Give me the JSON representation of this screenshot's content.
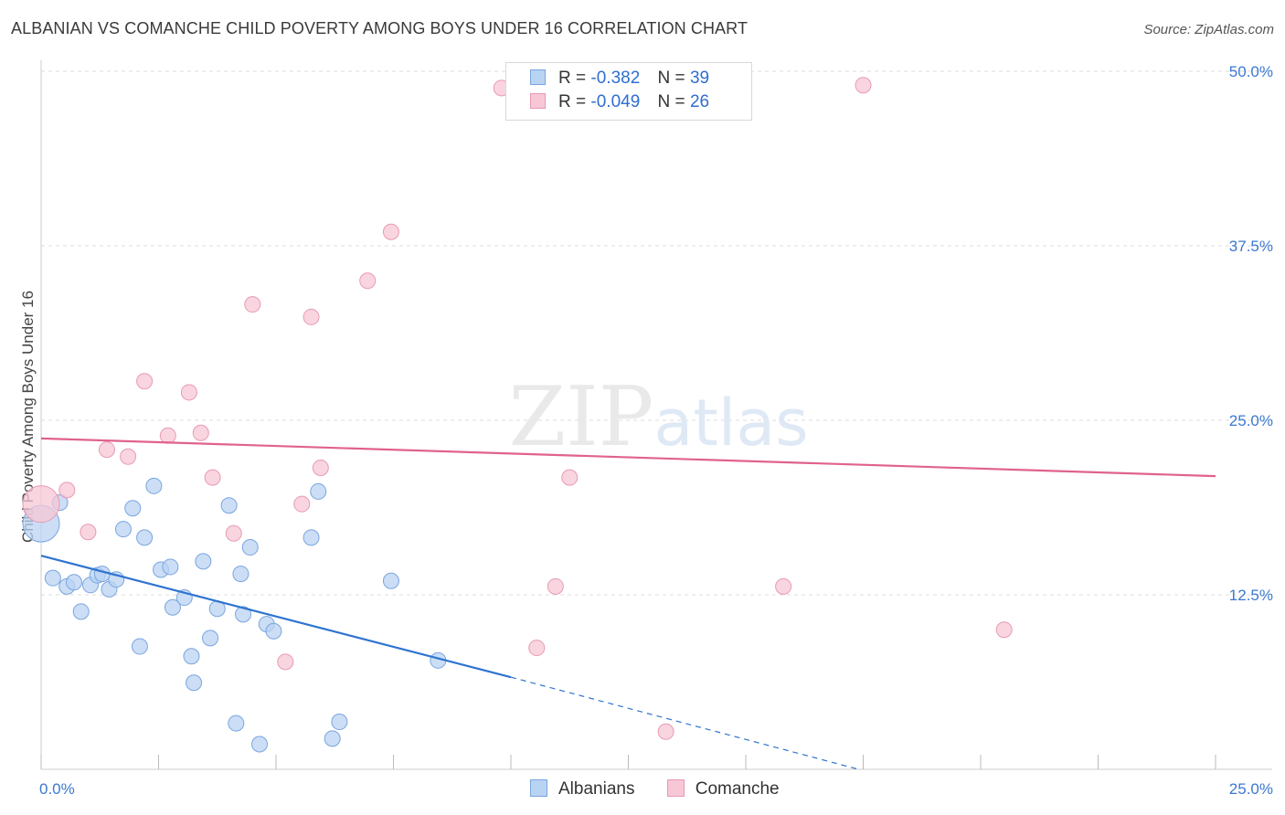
{
  "header": {
    "title": "ALBANIAN VS COMANCHE CHILD POVERTY AMONG BOYS UNDER 16 CORRELATION CHART",
    "source": "Source: ZipAtlas.com"
  },
  "watermark": {
    "zip": "ZIP",
    "atlas": "atlas"
  },
  "legend": {
    "rows": [
      {
        "r_label": "R =",
        "r_value": "-0.382",
        "n_label": "N =",
        "n_value": "39"
      },
      {
        "r_label": "R =",
        "r_value": "-0.049",
        "n_label": "N =",
        "n_value": "26"
      }
    ]
  },
  "bottom_legend": [
    "Albanians",
    "Comanche"
  ],
  "colors": {
    "albanians_fill": "#b9d3f3",
    "albanians_stroke": "#7aa5df",
    "albanians_line": "#2f74d0",
    "comanche_fill": "#f7c7d6",
    "comanche_stroke": "#e89ab3",
    "comanche_line": "#e0628d",
    "tick_label": "#3b78d0",
    "grid": "#dddddd"
  },
  "chart_data": {
    "type": "scatter",
    "title": "ALBANIAN VS COMANCHE CHILD POVERTY AMONG BOYS UNDER 16 CORRELATION CHART",
    "xlabel": "",
    "ylabel": "Child Poverty Among Boys Under 16",
    "xlim": [
      0,
      25
    ],
    "ylim": [
      0,
      50
    ],
    "x_tick_labels": [
      "0.0%",
      "25.0%"
    ],
    "y_ticks": [
      12.5,
      25.0,
      37.5,
      50.0
    ],
    "y_tick_labels": [
      "12.5%",
      "25.0%",
      "37.5%",
      "50.0%"
    ],
    "grid": "horizontal dashed",
    "legend_position": "top-center",
    "series": [
      {
        "name": "Albanians",
        "R": -0.382,
        "N": 39,
        "trend": {
          "x0": 0,
          "y0": 15.3,
          "x1": 10.0,
          "y1": 6.6,
          "dashed_to_x": 17.4,
          "dashed_to_y": 0.0
        },
        "points": [
          {
            "x": 0.0,
            "y": 17.6,
            "big": true
          },
          {
            "x": 0.4,
            "y": 19.1
          },
          {
            "x": 0.25,
            "y": 13.7
          },
          {
            "x": 0.55,
            "y": 13.1
          },
          {
            "x": 0.7,
            "y": 13.4
          },
          {
            "x": 0.85,
            "y": 11.3
          },
          {
            "x": 1.05,
            "y": 13.2
          },
          {
            "x": 1.2,
            "y": 13.9
          },
          {
            "x": 1.3,
            "y": 14.0
          },
          {
            "x": 1.45,
            "y": 12.9
          },
          {
            "x": 1.6,
            "y": 13.6
          },
          {
            "x": 1.75,
            "y": 17.2
          },
          {
            "x": 1.95,
            "y": 18.7
          },
          {
            "x": 2.1,
            "y": 8.8
          },
          {
            "x": 2.2,
            "y": 16.6
          },
          {
            "x": 2.4,
            "y": 20.3
          },
          {
            "x": 2.55,
            "y": 14.3
          },
          {
            "x": 2.75,
            "y": 14.5
          },
          {
            "x": 2.8,
            "y": 11.6
          },
          {
            "x": 3.05,
            "y": 12.3
          },
          {
            "x": 3.2,
            "y": 8.1
          },
          {
            "x": 3.25,
            "y": 6.2
          },
          {
            "x": 3.45,
            "y": 14.9
          },
          {
            "x": 3.6,
            "y": 9.4
          },
          {
            "x": 3.75,
            "y": 11.5
          },
          {
            "x": 4.0,
            "y": 18.9
          },
          {
            "x": 4.15,
            "y": 3.3
          },
          {
            "x": 4.25,
            "y": 14.0
          },
          {
            "x": 4.3,
            "y": 11.1
          },
          {
            "x": 4.45,
            "y": 15.9
          },
          {
            "x": 4.65,
            "y": 1.8
          },
          {
            "x": 4.8,
            "y": 10.4
          },
          {
            "x": 4.95,
            "y": 9.9
          },
          {
            "x": 5.75,
            "y": 16.6
          },
          {
            "x": 5.9,
            "y": 19.9
          },
          {
            "x": 6.2,
            "y": 2.2
          },
          {
            "x": 6.35,
            "y": 3.4
          },
          {
            "x": 7.45,
            "y": 13.5
          },
          {
            "x": 8.45,
            "y": 7.8
          }
        ]
      },
      {
        "name": "Comanche",
        "R": -0.049,
        "N": 26,
        "trend": {
          "x0": 0,
          "y0": 23.7,
          "x1": 25,
          "y1": 21.0
        },
        "points": [
          {
            "x": 0.0,
            "y": 19.0,
            "big": true
          },
          {
            "x": 0.55,
            "y": 20.0
          },
          {
            "x": 1.0,
            "y": 17.0
          },
          {
            "x": 1.4,
            "y": 22.9
          },
          {
            "x": 1.85,
            "y": 22.4
          },
          {
            "x": 2.2,
            "y": 27.8
          },
          {
            "x": 2.7,
            "y": 23.9
          },
          {
            "x": 3.15,
            "y": 27.0
          },
          {
            "x": 3.4,
            "y": 24.1
          },
          {
            "x": 3.65,
            "y": 20.9
          },
          {
            "x": 4.1,
            "y": 16.9
          },
          {
            "x": 4.5,
            "y": 33.3
          },
          {
            "x": 5.2,
            "y": 7.7
          },
          {
            "x": 5.55,
            "y": 19.0
          },
          {
            "x": 5.75,
            "y": 32.4
          },
          {
            "x": 5.95,
            "y": 21.6
          },
          {
            "x": 6.95,
            "y": 35.0
          },
          {
            "x": 7.45,
            "y": 38.5
          },
          {
            "x": 9.8,
            "y": 48.8
          },
          {
            "x": 10.55,
            "y": 8.7
          },
          {
            "x": 10.95,
            "y": 13.1
          },
          {
            "x": 11.25,
            "y": 20.9
          },
          {
            "x": 13.3,
            "y": 2.7
          },
          {
            "x": 15.8,
            "y": 13.1
          },
          {
            "x": 17.5,
            "y": 49.0
          },
          {
            "x": 20.5,
            "y": 10.0
          }
        ]
      }
    ]
  }
}
